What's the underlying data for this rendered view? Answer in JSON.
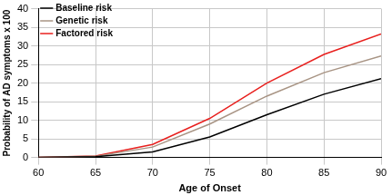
{
  "chart_data": {
    "type": "line",
    "x_label": "Age of Onset",
    "y_label": "Probability of AD symptoms x 100",
    "x": [
      60,
      65,
      70,
      75,
      80,
      85,
      90
    ],
    "series": [
      {
        "name": "Baseline risk",
        "color": "#000000",
        "values": [
          0,
          0.2,
          1.5,
          5.5,
          11.5,
          17,
          21.2
        ]
      },
      {
        "name": "Genetic risk",
        "color": "#a89484",
        "values": [
          0,
          0.3,
          2.8,
          9,
          16.5,
          22.8,
          27.3
        ]
      },
      {
        "name": "Factored risk",
        "color": "#e8201e",
        "values": [
          0,
          0.4,
          3.5,
          10.5,
          20,
          27.7,
          33.2
        ]
      }
    ],
    "xlim": [
      60,
      90
    ],
    "xticks": [
      60,
      65,
      70,
      75,
      80,
      85,
      90
    ],
    "ylim": [
      0,
      40
    ],
    "yticks": [
      0,
      5,
      10,
      15,
      20,
      25,
      30,
      35,
      40
    ],
    "grid": true,
    "legend": "upper left",
    "marker": "none",
    "line_style": "solid"
  }
}
